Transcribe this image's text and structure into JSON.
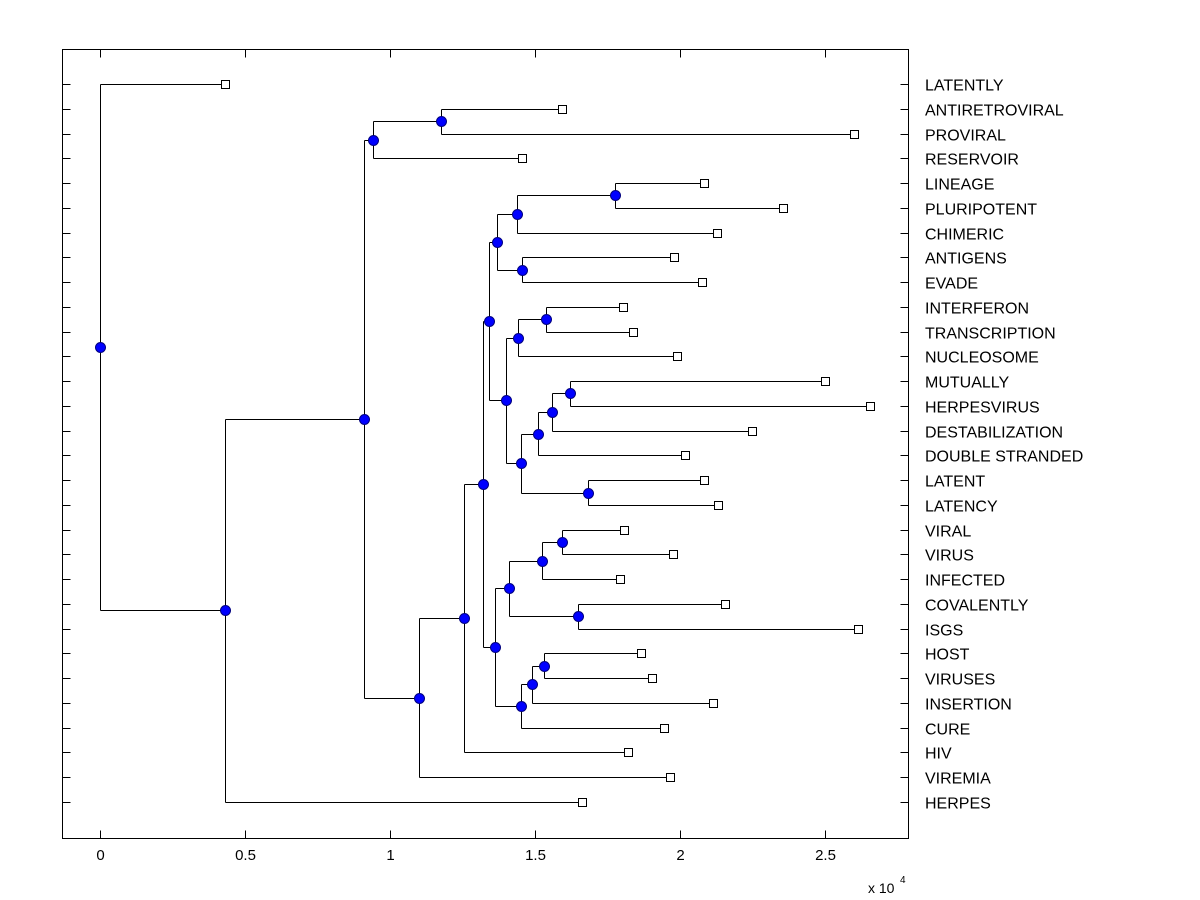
{
  "chart_data": {
    "type": "dendrogram",
    "title": "",
    "xlabel": "",
    "ylabel": "",
    "x_multiplier_label": "x 10",
    "x_multiplier_exponent": "4",
    "xlim": [
      -0.13,
      2.79
    ],
    "xticks": [
      0,
      0.5,
      1,
      1.5,
      2,
      2.5
    ],
    "xtick_labels": [
      "0",
      "0.5",
      "1",
      "1.5",
      "2",
      "2.5"
    ],
    "grid": false,
    "leaf_order": [
      "LATENTLY",
      "ANTIRETROVIRAL",
      "PROVIRAL",
      "RESERVOIR",
      "LINEAGE",
      "PLURIPOTENT",
      "CHIMERIC",
      "ANTIGENS",
      "EVADE",
      "INTERFERON",
      "TRANSCRIPTION",
      "NUCLEOSOME",
      "MUTUALLY",
      "HERPESVIRUS",
      "DESTABILIZATION",
      "DOUBLE STRANDED",
      "LATENT",
      "LATENCY",
      "VIRAL",
      "VIRUS",
      "INFECTED",
      "COVALENTLY",
      "ISGS",
      "HOST",
      "VIRUSES",
      "INSERTION",
      "CURE",
      "HIV",
      "VIREMIA",
      "HERPES"
    ],
    "node_color": "#0000ff",
    "tree": {
      "x": 0,
      "children": [
        {
          "leaf": "LATENTLY",
          "x": 0.431
        },
        {
          "x": 0.431,
          "children": [
            {
              "x": 0.91,
              "children": [
                {
                  "x": 0.941,
                  "children": [
                    {
                      "x": 1.176,
                      "children": [
                        {
                          "leaf": "ANTIRETROVIRAL",
                          "x": 1.593
                        },
                        {
                          "leaf": "PROVIRAL",
                          "x": 2.6
                        }
                      ]
                    },
                    {
                      "leaf": "RESERVOIR",
                      "x": 1.455
                    }
                  ]
                },
                {
                  "x": 1.1,
                  "children": [
                    {
                      "x": 1.255,
                      "children": [
                        {
                          "x": 1.321,
                          "children": [
                            {
                              "x": 1.341,
                              "children": [
                                {
                                  "x": 1.369,
                                  "children": [
                                    {
                                      "x": 1.438,
                                      "children": [
                                        {
                                          "x": 1.776,
                                          "children": [
                                            {
                                              "leaf": "LINEAGE",
                                              "x": 2.083
                                            },
                                            {
                                              "leaf": "PLURIPOTENT",
                                              "x": 2.355
                                            }
                                          ]
                                        },
                                        {
                                          "leaf": "CHIMERIC",
                                          "x": 2.128
                                        }
                                      ]
                                    },
                                    {
                                      "x": 1.455,
                                      "children": [
                                        {
                                          "leaf": "ANTIGENS",
                                          "x": 1.979
                                        },
                                        {
                                          "leaf": "EVADE",
                                          "x": 2.076
                                        }
                                      ]
                                    }
                                  ]
                                },
                                {
                                  "x": 1.4,
                                  "children": [
                                    {
                                      "x": 1.441,
                                      "children": [
                                        {
                                          "x": 1.538,
                                          "children": [
                                            {
                                              "leaf": "INTERFERON",
                                              "x": 1.803
                                            },
                                            {
                                              "leaf": "TRANSCRIPTION",
                                              "x": 1.838
                                            }
                                          ]
                                        },
                                        {
                                          "leaf": "NUCLEOSOME",
                                          "x": 1.99
                                        }
                                      ]
                                    },
                                    {
                                      "x": 1.452,
                                      "children": [
                                        {
                                          "x": 1.51,
                                          "children": [
                                            {
                                              "x": 1.559,
                                              "children": [
                                                {
                                                  "x": 1.621,
                                                  "children": [
                                                    {
                                                      "leaf": "MUTUALLY",
                                                      "x": 2.5
                                                    },
                                                    {
                                                      "leaf": "HERPESVIRUS",
                                                      "x": 2.655
                                                    }
                                                  ]
                                                },
                                                {
                                                  "leaf": "DESTABILIZATION",
                                                  "x": 2.248
                                                }
                                              ]
                                            },
                                            {
                                              "leaf": "DOUBLE STRANDED",
                                              "x": 2.017
                                            }
                                          ]
                                        },
                                        {
                                          "x": 1.683,
                                          "children": [
                                            {
                                              "leaf": "LATENT",
                                              "x": 2.083
                                            },
                                            {
                                              "leaf": "LATENCY",
                                              "x": 2.131
                                            }
                                          ]
                                        }
                                      ]
                                    }
                                  ]
                                }
                              ]
                            },
                            {
                              "x": 1.362,
                              "children": [
                                {
                                  "x": 1.41,
                                  "children": [
                                    {
                                      "x": 1.524,
                                      "children": [
                                        {
                                          "x": 1.593,
                                          "children": [
                                            {
                                              "leaf": "VIRAL",
                                              "x": 1.807
                                            },
                                            {
                                              "leaf": "VIRUS",
                                              "x": 1.976
                                            }
                                          ]
                                        },
                                        {
                                          "leaf": "INFECTED",
                                          "x": 1.793
                                        }
                                      ]
                                    },
                                    {
                                      "x": 1.648,
                                      "children": [
                                        {
                                          "leaf": "COVALENTLY",
                                          "x": 2.155
                                        },
                                        {
                                          "leaf": "ISGS",
                                          "x": 2.614
                                        }
                                      ]
                                    }
                                  ]
                                },
                                {
                                  "x": 1.452,
                                  "children": [
                                    {
                                      "x": 1.49,
                                      "children": [
                                        {
                                          "x": 1.531,
                                          "children": [
                                            {
                                              "leaf": "HOST",
                                              "x": 1.866
                                            },
                                            {
                                              "leaf": "VIRUSES",
                                              "x": 1.903
                                            }
                                          ]
                                        },
                                        {
                                          "leaf": "INSERTION",
                                          "x": 2.114
                                        }
                                      ]
                                    },
                                    {
                                      "leaf": "CURE",
                                      "x": 1.945
                                    }
                                  ]
                                }
                              ]
                            }
                          ]
                        },
                        {
                          "leaf": "HIV",
                          "x": 1.821
                        }
                      ]
                    },
                    {
                      "leaf": "VIREMIA",
                      "x": 1.966
                    }
                  ]
                }
              ]
            },
            {
              "leaf": "HERPES",
              "x": 1.662
            }
          ]
        }
      ]
    }
  }
}
